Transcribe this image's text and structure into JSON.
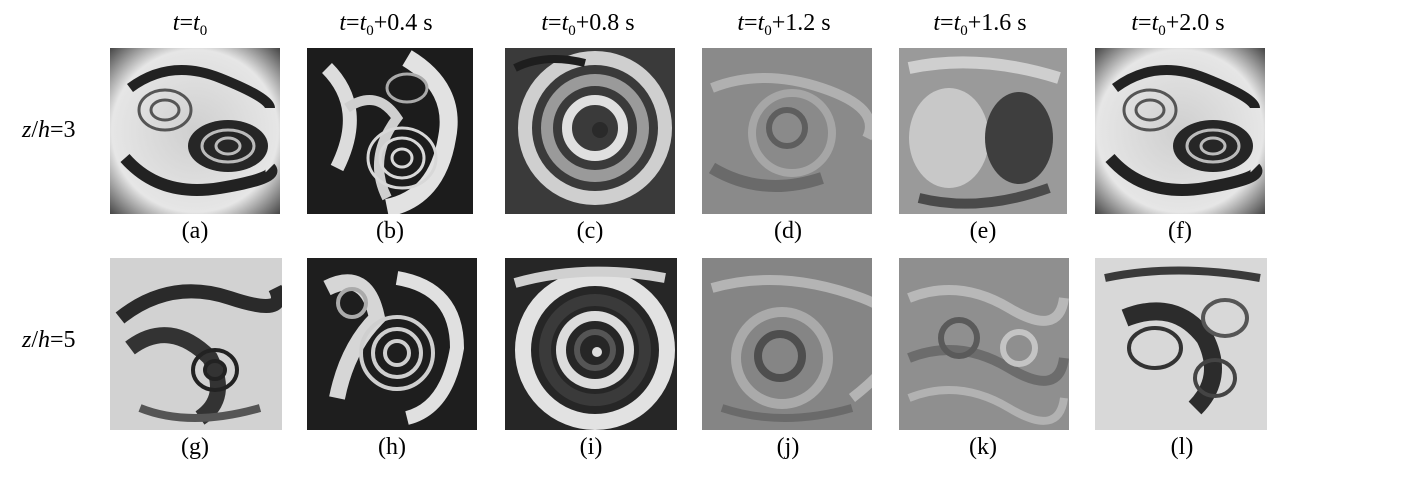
{
  "columns": [
    {
      "t": "t",
      "eq": "=",
      "sym": "t",
      "sub": "0",
      "rest": ""
    },
    {
      "t": "t",
      "eq": "=",
      "sym": "t",
      "sub": "0",
      "rest": "+0.4 s"
    },
    {
      "t": "t",
      "eq": "=",
      "sym": "t",
      "sub": "0",
      "rest": "+0.8 s"
    },
    {
      "t": "t",
      "eq": "=",
      "sym": "t",
      "sub": "0",
      "rest": "+1.2 s"
    },
    {
      "t": "t",
      "eq": "=",
      "sym": "t",
      "sub": "0",
      "rest": "+1.6 s"
    },
    {
      "t": "t",
      "eq": "=",
      "sym": "t",
      "sub": "0",
      "rest": "+2.0 s"
    }
  ],
  "rows": [
    {
      "z": "z",
      "slash": "/",
      "h": "h",
      "val": "=3"
    },
    {
      "z": "z",
      "slash": "/",
      "h": "h",
      "val": "=5"
    }
  ],
  "panels": {
    "row1": [
      "(a)",
      "(b)",
      "(c)",
      "(d)",
      "(e)",
      "(f)"
    ],
    "row2": [
      "(g)",
      "(h)",
      "(i)",
      "(j)",
      "(k)",
      "(l)"
    ]
  },
  "colors": {
    "background": "#ffffff",
    "panel_dark": "#1a1a1a",
    "panel_light": "#e8e8e8"
  }
}
